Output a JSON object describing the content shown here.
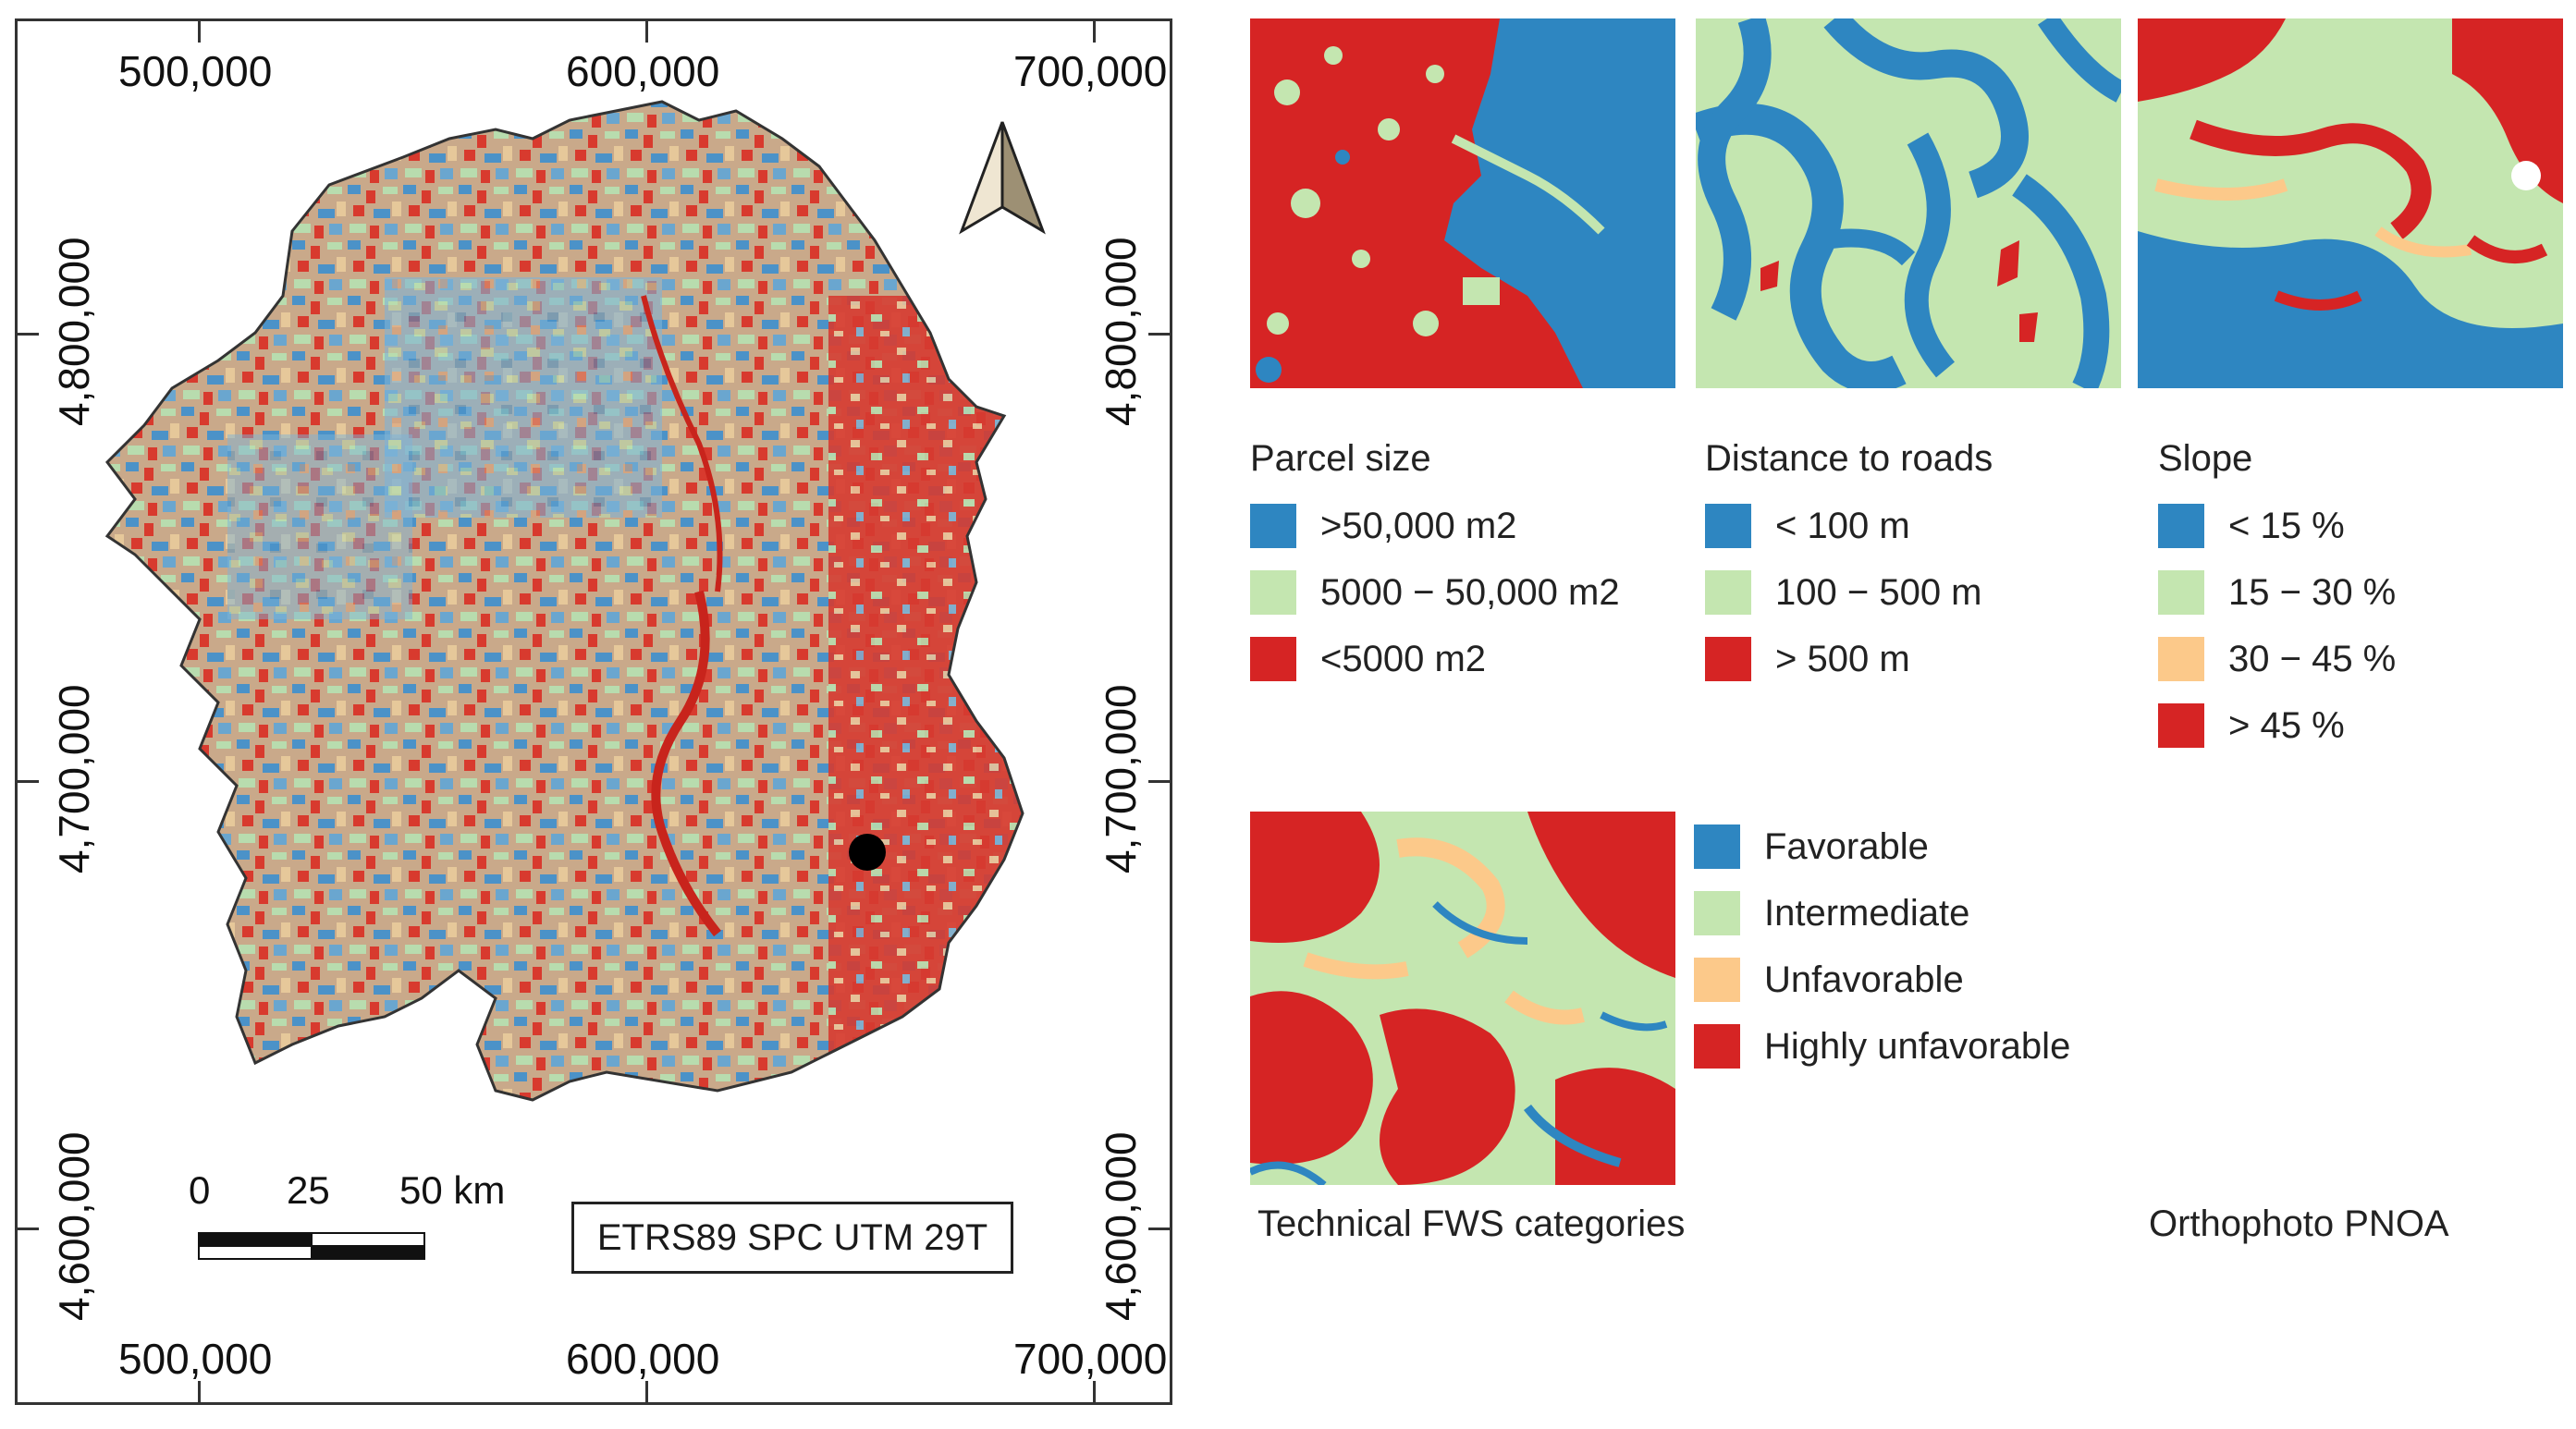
{
  "main_map": {
    "top_x_labels": [
      "500,000",
      "600,000",
      "700,000"
    ],
    "bottom_x_labels": [
      "500,000",
      "600,000",
      "700,000"
    ],
    "left_y_labels": [
      "4,800,000",
      "4,700,000",
      "4,600,000"
    ],
    "right_y_labels": [
      "4,800,000",
      "4,700,000",
      "4,600,000"
    ],
    "scale_bar": {
      "labels": [
        "0",
        "25",
        "50 km"
      ]
    },
    "crs_label": "ETRS89 SPC UTM 29T",
    "north_arrow": "north-arrow-icon",
    "colors": {
      "outline": "#333333"
    }
  },
  "legends": {
    "parcel": {
      "title": "Parcel size",
      "items": [
        {
          "label": ">50,000 m2",
          "color": "#2e86c1"
        },
        {
          "label": "5000 − 50,000 m2",
          "color": "#c4e6b0"
        },
        {
          "label": "<5000 m2",
          "color": "#d62424"
        }
      ]
    },
    "roads": {
      "title": "Distance to roads",
      "items": [
        {
          "label": "< 100 m",
          "color": "#2e86c1"
        },
        {
          "label": "100 − 500 m",
          "color": "#c4e6b0"
        },
        {
          "label": "> 500 m",
          "color": "#d62424"
        }
      ]
    },
    "slope": {
      "title": "Slope",
      "items": [
        {
          "label": "< 15 %",
          "color": "#2e86c1"
        },
        {
          "label": "15 − 30 %",
          "color": "#c4e6b0"
        },
        {
          "label": "30 − 45 %",
          "color": "#fcc98a"
        },
        {
          "label": "> 45 %",
          "color": "#d62424"
        }
      ]
    },
    "fws": {
      "items": [
        {
          "label": "Favorable",
          "color": "#2e86c1"
        },
        {
          "label": "Intermediate",
          "color": "#c4e6b0"
        },
        {
          "label": "Unfavorable",
          "color": "#fcc98a"
        },
        {
          "label": "Highly unfavorable",
          "color": "#d62424"
        }
      ]
    }
  },
  "captions": {
    "fws": "Technical FWS categories",
    "ortho": "Orthophoto PNOA"
  }
}
